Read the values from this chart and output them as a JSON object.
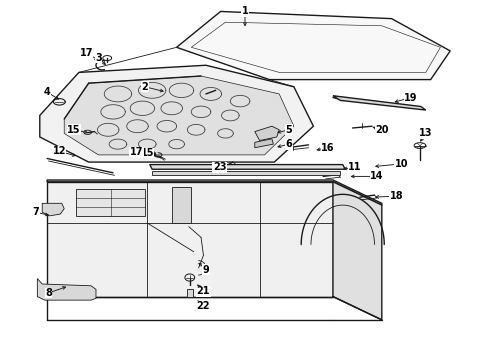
{
  "bg_color": "#ffffff",
  "line_color": "#1a1a1a",
  "label_color": "#000000",
  "fig_width": 4.9,
  "fig_height": 3.6,
  "dpi": 100,
  "lw_main": 1.0,
  "lw_thin": 0.6,
  "fontsize": 7.0,
  "label_positions": {
    "1": [
      0.5,
      0.97,
      0.5,
      0.92
    ],
    "2": [
      0.295,
      0.76,
      0.34,
      0.745
    ],
    "3": [
      0.2,
      0.84,
      0.22,
      0.815
    ],
    "4": [
      0.095,
      0.745,
      0.125,
      0.72
    ],
    "5": [
      0.59,
      0.64,
      0.56,
      0.63
    ],
    "6": [
      0.59,
      0.6,
      0.56,
      0.59
    ],
    "7": [
      0.072,
      0.41,
      0.105,
      0.4
    ],
    "8": [
      0.098,
      0.185,
      0.14,
      0.205
    ],
    "9": [
      0.42,
      0.25,
      0.4,
      0.275
    ],
    "10": [
      0.82,
      0.545,
      0.76,
      0.537
    ],
    "11": [
      0.725,
      0.535,
      0.695,
      0.53
    ],
    "12": [
      0.12,
      0.58,
      0.16,
      0.565
    ],
    "13": [
      0.87,
      0.63,
      0.855,
      0.6
    ],
    "14": [
      0.77,
      0.51,
      0.71,
      0.51
    ],
    "15a": [
      0.15,
      0.64,
      0.185,
      0.63
    ],
    "15b": [
      0.3,
      0.575,
      0.325,
      0.57
    ],
    "16": [
      0.67,
      0.59,
      0.64,
      0.582
    ],
    "17a": [
      0.175,
      0.855,
      0.205,
      0.83
    ],
    "17b": [
      0.278,
      0.578,
      0.308,
      0.568
    ],
    "18": [
      0.81,
      0.455,
      0.76,
      0.452
    ],
    "19": [
      0.84,
      0.73,
      0.8,
      0.715
    ],
    "20": [
      0.78,
      0.64,
      0.755,
      0.65
    ],
    "21": [
      0.415,
      0.19,
      0.398,
      0.215
    ],
    "22": [
      0.415,
      0.148,
      0.398,
      0.17
    ],
    "23": [
      0.448,
      0.535,
      0.465,
      0.528
    ]
  },
  "label_display": {
    "1": "1",
    "2": "2",
    "3": "3",
    "4": "4",
    "5": "5",
    "6": "6",
    "7": "7",
    "8": "8",
    "9": "9",
    "10": "10",
    "11": "11",
    "12": "12",
    "13": "13",
    "14": "14",
    "15a": "15",
    "15b": "15",
    "16": "16",
    "17a": "17",
    "17b": "17",
    "18": "18",
    "19": "19",
    "20": "20",
    "21": "21",
    "22": "22",
    "23": "23"
  }
}
